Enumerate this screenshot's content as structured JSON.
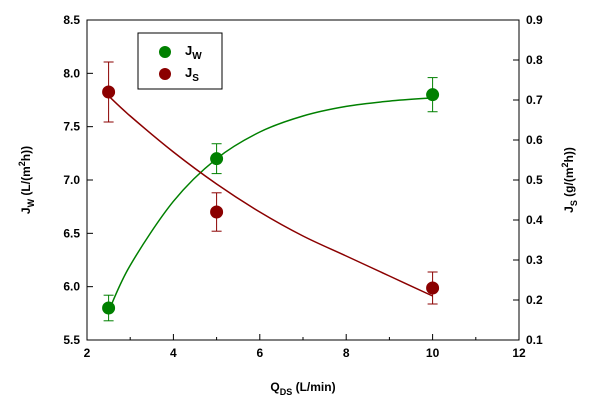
{
  "chart_data": {
    "type": "scatter",
    "x_axis": {
      "label_main": "Q",
      "label_sub": "DS",
      "label_tail": " (L/min)",
      "lim": [
        2,
        12
      ],
      "ticks": [
        2,
        4,
        6,
        8,
        10,
        12
      ],
      "tick_labels": [
        "2",
        "4",
        "6",
        "8",
        "10",
        "12"
      ]
    },
    "y_left": {
      "label_main": "J",
      "label_sub": "W",
      "label_tail_a": " (L/(m",
      "label_sup": "2",
      "label_tail_b": "h))",
      "lim": [
        5.5,
        8.5
      ],
      "ticks": [
        5.5,
        6.0,
        6.5,
        7.0,
        7.5,
        8.0,
        8.5
      ],
      "tick_labels": [
        "5.5",
        "6.0",
        "6.5",
        "7.0",
        "7.5",
        "8.0",
        "8.5"
      ]
    },
    "y_right": {
      "label_main": "J",
      "label_sub": "S",
      "label_tail_a": " (g/(m",
      "label_sup": "2",
      "label_tail_b": "h))",
      "lim": [
        0.1,
        0.9
      ],
      "ticks": [
        0.1,
        0.2,
        0.3,
        0.4,
        0.5,
        0.6,
        0.7,
        0.8,
        0.9
      ],
      "tick_labels": [
        "0.1",
        "0.2",
        "0.3",
        "0.4",
        "0.5",
        "0.6",
        "0.7",
        "0.8",
        "0.9"
      ]
    },
    "legend": {
      "placement": "top-left"
    },
    "series": [
      {
        "name_main": "J",
        "name_sub": "W",
        "axis": "left",
        "color": "#008000",
        "x": [
          2.5,
          5,
          10
        ],
        "y": [
          5.8,
          7.2,
          7.8
        ],
        "err": [
          0.12,
          0.14,
          0.16
        ],
        "fit": {
          "type": "exponential-rise",
          "x": [
            2.5,
            3,
            4,
            5,
            6,
            7,
            8,
            9,
            10
          ],
          "y": [
            5.77,
            6.2,
            6.8,
            7.2,
            7.45,
            7.6,
            7.69,
            7.74,
            7.77
          ]
        }
      },
      {
        "name_main": "J",
        "name_sub": "S",
        "axis": "right",
        "color": "#8b0000",
        "x": [
          2.5,
          5,
          10
        ],
        "y": [
          0.72,
          0.42,
          0.23
        ],
        "err": [
          0.075,
          0.048,
          0.04
        ],
        "fit": {
          "type": "exponential-decay",
          "x": [
            2.5,
            3,
            4,
            5,
            6,
            7,
            8,
            9,
            10
          ],
          "y": [
            0.71,
            0.66,
            0.57,
            0.49,
            0.42,
            0.36,
            0.31,
            0.26,
            0.21
          ]
        }
      }
    ]
  }
}
